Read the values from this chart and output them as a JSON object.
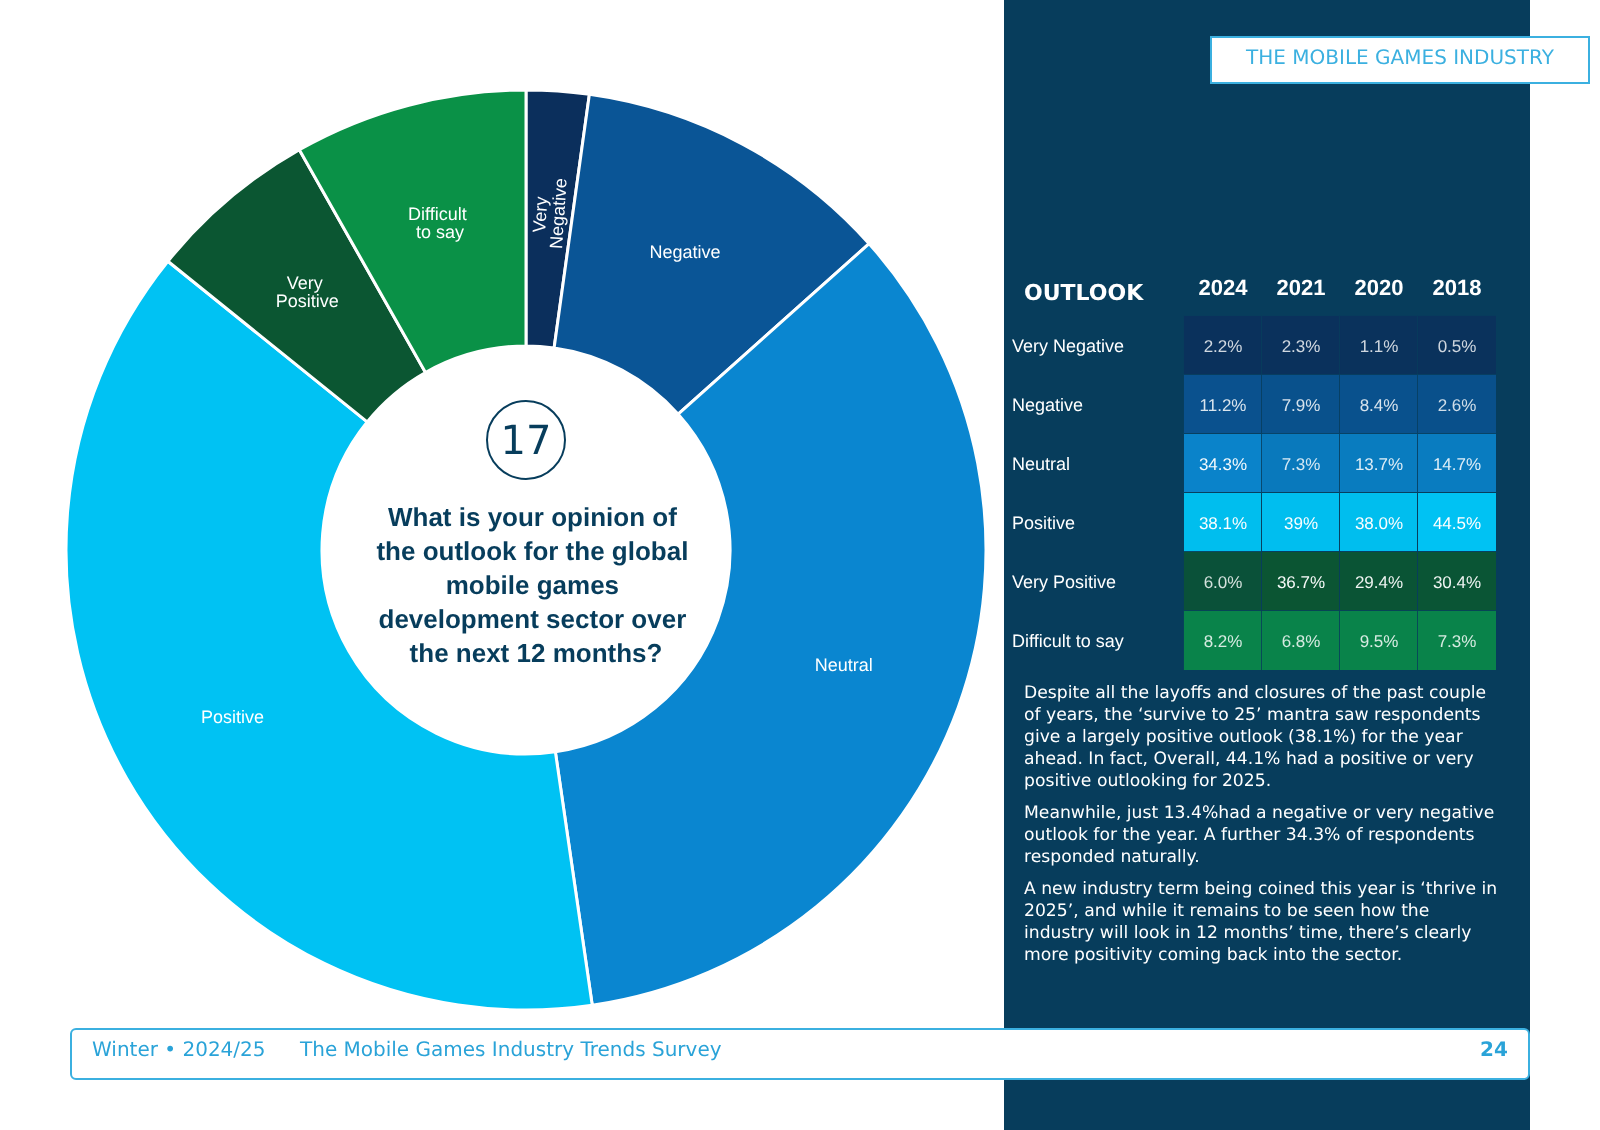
{
  "chart_data": [
    {
      "type": "donut",
      "title": "What is your opinion of the outlook for the global mobile games development sector over the next 12 months?",
      "categories": [
        "Very Negative",
        "Negative",
        "Neutral",
        "Positive",
        "Very Positive",
        "Difficult to say"
      ],
      "values": [
        2.2,
        11.2,
        34.3,
        38.1,
        6.0,
        8.2
      ],
      "colors": [
        "#0b2f5c",
        "#0a5596",
        "#0a86d0",
        "#00c2f3",
        "#0b5632",
        "#0a9147"
      ],
      "legend": false,
      "annotations": [
        "17",
        "THE MOBILE GAMES INDUSTRY",
        "Winter • 2024/25",
        "The Mobile Games Industry Trends Survey",
        "24"
      ]
    },
    {
      "type": "heatmap",
      "ylabel": "OUTLOOK",
      "categories": [
        "2024",
        "2021",
        "2020",
        "2018"
      ],
      "y_categories": [
        "Very Negative",
        "Negative",
        "Neutral",
        "Positive",
        "Very Positive",
        "Difficult to say"
      ],
      "cells": [
        [
          2.2,
          2.3,
          1.1,
          0.5
        ],
        [
          11.2,
          7.9,
          8.4,
          2.6
        ],
        [
          34.3,
          7.3,
          13.7,
          14.7
        ],
        [
          38.1,
          39,
          38.0,
          44.5
        ],
        [
          6.0,
          36.7,
          29.4,
          30.4
        ],
        [
          8.2,
          6.8,
          9.5,
          7.3
        ]
      ],
      "cell_labels": [
        [
          "2.2%",
          "2.3%",
          "1.1%",
          "0.5%"
        ],
        [
          "11.2%",
          "7.9%",
          "8.4%",
          "2.6%"
        ],
        [
          "34.3%",
          "7.3%",
          "13.7%",
          "14.7%"
        ],
        [
          "38.1%",
          "39%",
          "38.0%",
          "44.5%"
        ],
        [
          "6.0%",
          "36.7%",
          "29.4%",
          "30.4%"
        ],
        [
          "8.2%",
          "6.8%",
          "9.5%",
          "7.3%"
        ]
      ],
      "colors": [
        "#0b2f5c",
        "#0a5596",
        "#0a86d0",
        "#00c2f3",
        "#0b5632",
        "#0a9147"
      ],
      "annotations": [
        "Despite all the layoffs and closures of the past couple of years, the ‘survive to 25’ mantra saw respondents give a largely positive outlook (38.1%) for the year ahead. In fact, Overall, 44.1% had a positive or very positive outlooking for 2025.",
        "Meanwhile, just 13.4%had a negative or very negative outlook for the year. A further 34.3% of respondents responded naturally.",
        "A new industry term being coined this year is ‘thrive in 2025’, and while it remains to be seen how the industry will look in 12 months’ time, there’s clearly more positivity coming back into the sector."
      ]
    }
  ]
}
